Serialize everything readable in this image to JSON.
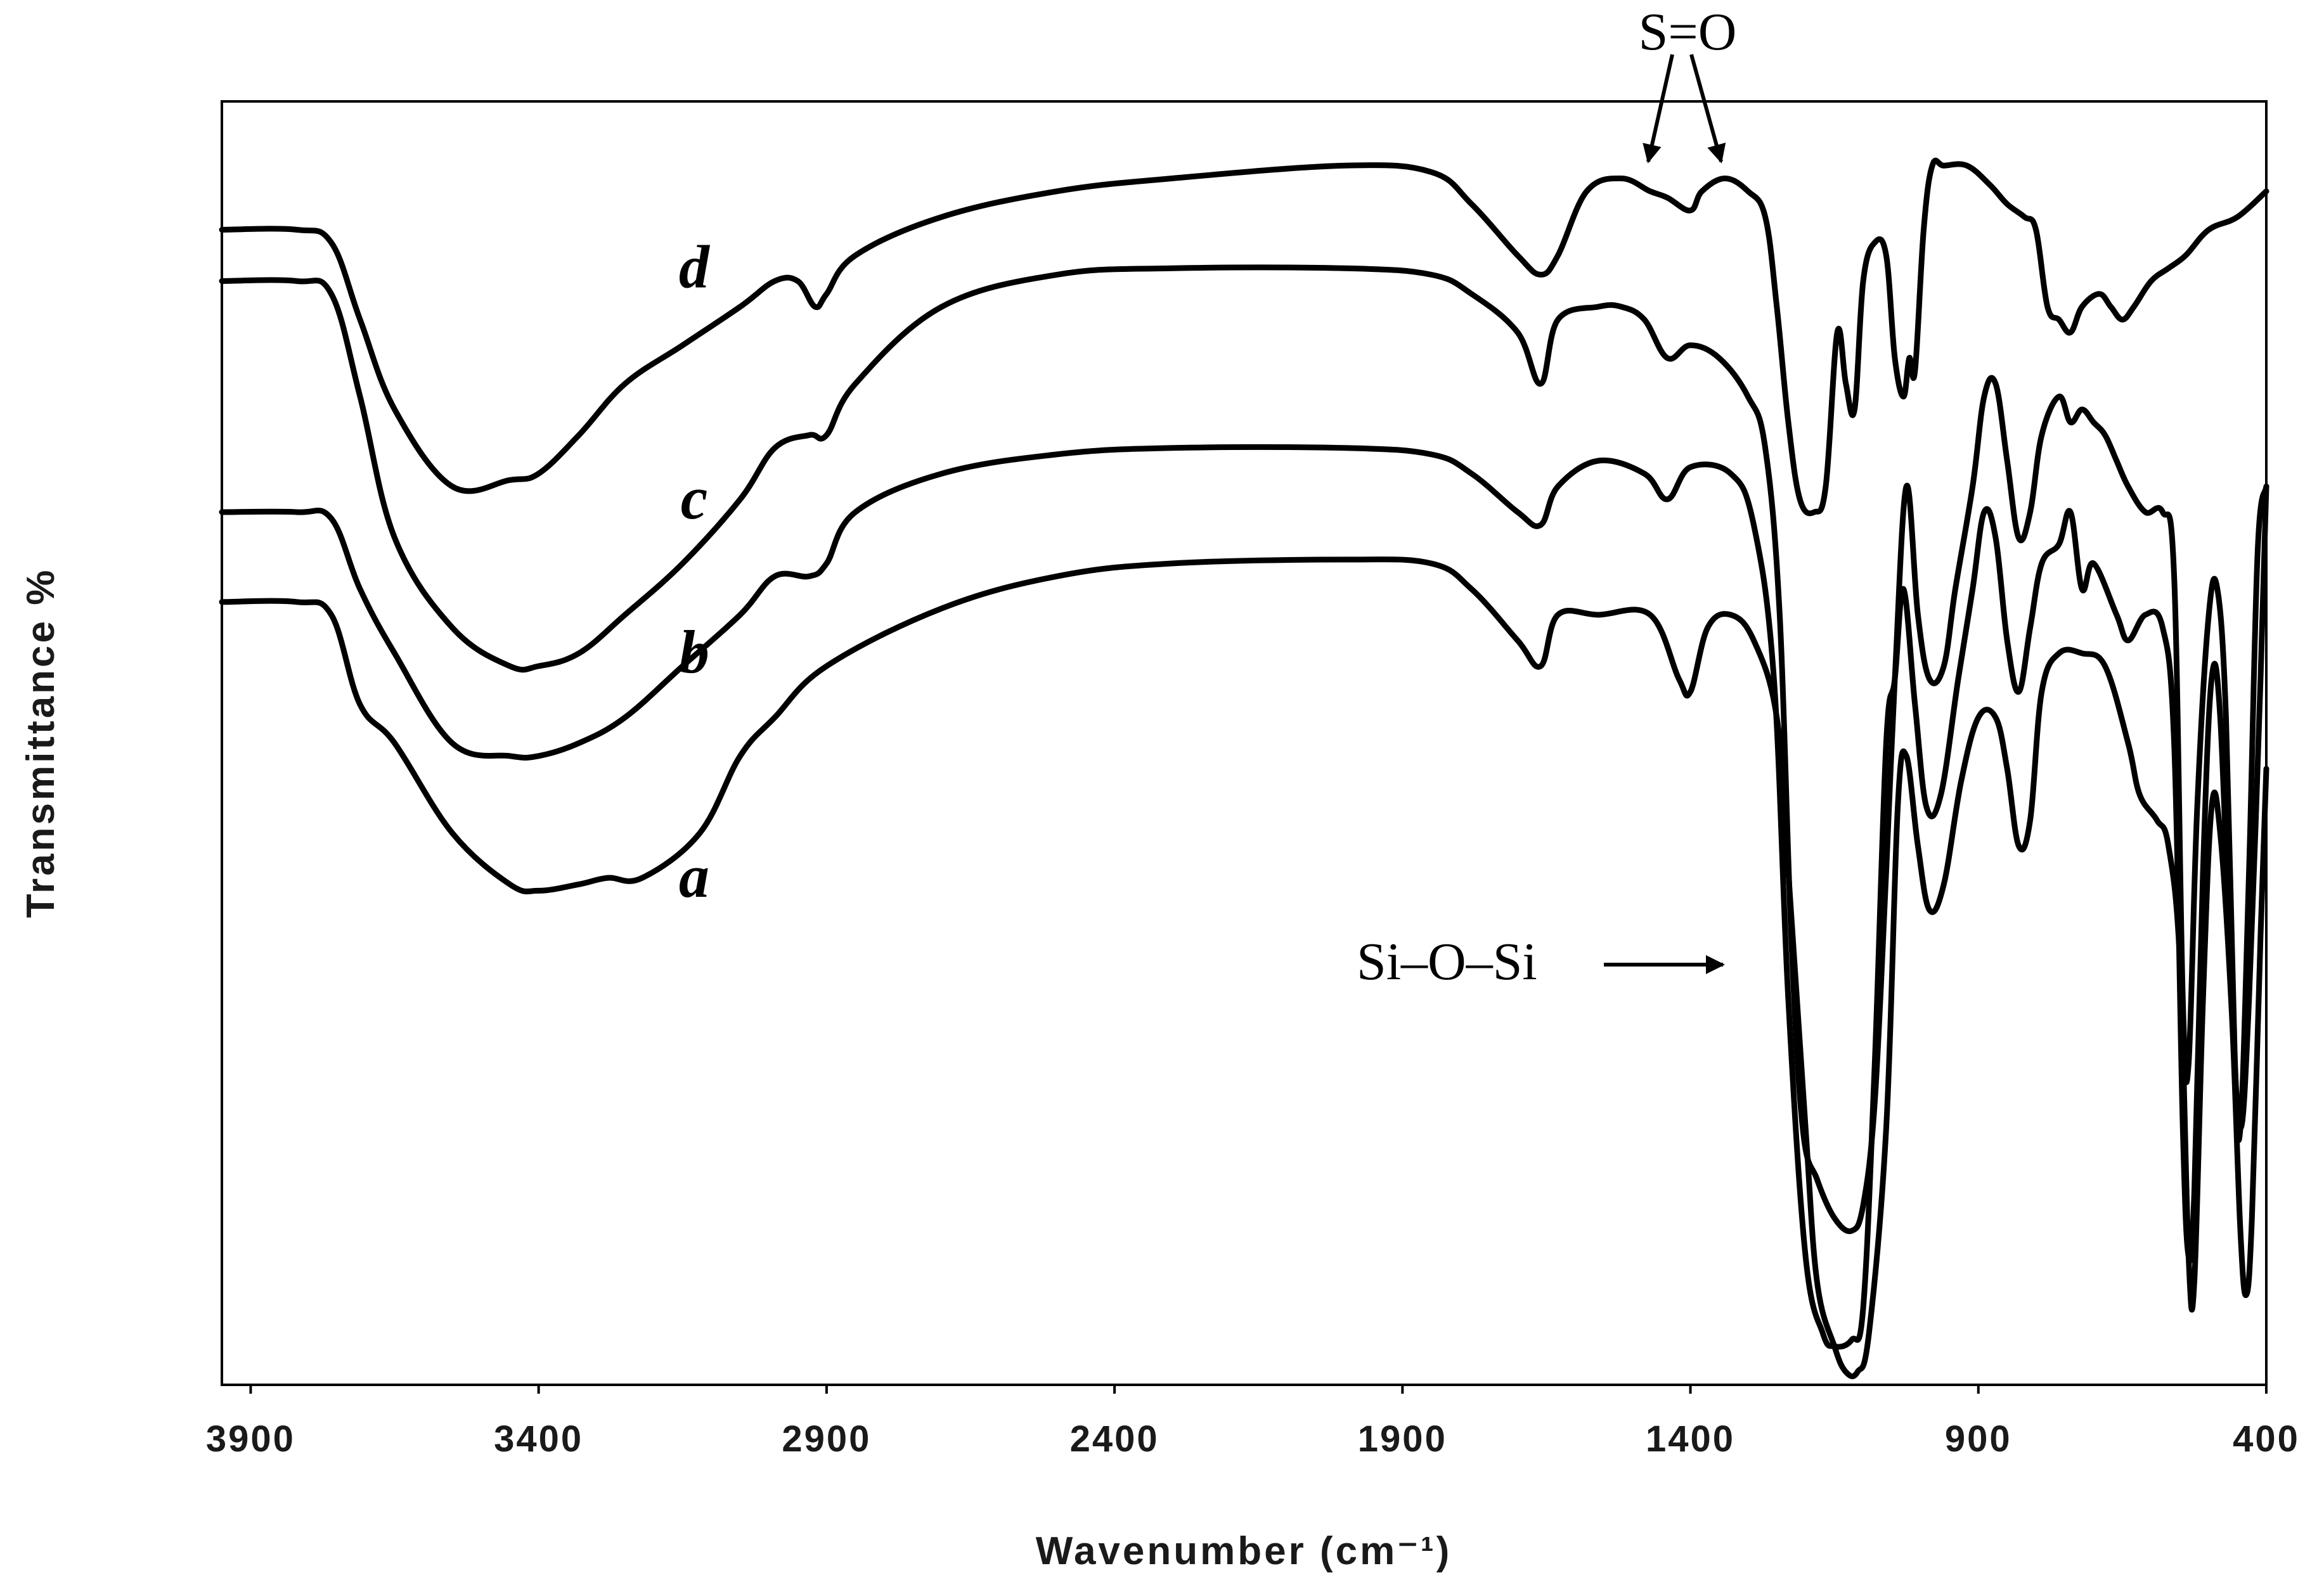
{
  "chart_data": {
    "type": "line",
    "xlabel": "Wavenumber (cm⁻¹)",
    "ylabel": "Transmittance %",
    "xlim": [
      3950,
      400
    ],
    "x_reversed": true,
    "x_ticks": [
      3900,
      3400,
      2900,
      2400,
      1900,
      1400,
      900,
      400
    ],
    "y_ticks_shown": false,
    "grid": false,
    "ylim": [
      0,
      100
    ],
    "series": [
      {
        "name": "a",
        "points": [
          [
            3950,
            61
          ],
          [
            3820,
            61
          ],
          [
            3760,
            60
          ],
          [
            3710,
            53
          ],
          [
            3650,
            50
          ],
          [
            3550,
            43
          ],
          [
            3450,
            39
          ],
          [
            3400,
            38.5
          ],
          [
            3330,
            39
          ],
          [
            3280,
            39.5
          ],
          [
            3220,
            39.5
          ],
          [
            3120,
            43
          ],
          [
            3050,
            49
          ],
          [
            2990,
            52
          ],
          [
            2900,
            56
          ],
          [
            2700,
            60.5
          ],
          [
            2500,
            63
          ],
          [
            2300,
            64
          ],
          [
            2000,
            64.3
          ],
          [
            1850,
            64
          ],
          [
            1780,
            62
          ],
          [
            1700,
            58
          ],
          [
            1660,
            56
          ],
          [
            1630,
            60
          ],
          [
            1560,
            60
          ],
          [
            1470,
            60
          ],
          [
            1420,
            55
          ],
          [
            1400,
            54
          ],
          [
            1370,
            59
          ],
          [
            1330,
            60
          ],
          [
            1290,
            58
          ],
          [
            1250,
            52
          ],
          [
            1230,
            40
          ],
          [
            1200,
            20
          ],
          [
            1180,
            8
          ],
          [
            1150,
            3
          ],
          [
            1130,
            1
          ],
          [
            1110,
            1
          ],
          [
            1090,
            4
          ],
          [
            1060,
            20
          ],
          [
            1040,
            45
          ],
          [
            1025,
            49
          ],
          [
            1005,
            42
          ],
          [
            985,
            37
          ],
          [
            960,
            39
          ],
          [
            930,
            47
          ],
          [
            900,
            52
          ],
          [
            870,
            52
          ],
          [
            850,
            48
          ],
          [
            830,
            42
          ],
          [
            810,
            44
          ],
          [
            790,
            54
          ],
          [
            760,
            57
          ],
          [
            720,
            57
          ],
          [
            680,
            56
          ],
          [
            640,
            50
          ],
          [
            620,
            46
          ],
          [
            590,
            44
          ],
          [
            570,
            42
          ],
          [
            550,
            33
          ],
          [
            535,
            10
          ],
          [
            525,
            8
          ],
          [
            510,
            30
          ],
          [
            495,
            45
          ],
          [
            480,
            43
          ],
          [
            460,
            29
          ],
          [
            445,
            12
          ],
          [
            435,
            7
          ],
          [
            425,
            13
          ],
          [
            410,
            35
          ],
          [
            400,
            48
          ]
        ]
      },
      {
        "name": "b",
        "points": [
          [
            3950,
            68
          ],
          [
            3820,
            68
          ],
          [
            3760,
            67.5
          ],
          [
            3710,
            62
          ],
          [
            3650,
            57
          ],
          [
            3550,
            50
          ],
          [
            3450,
            49
          ],
          [
            3400,
            49
          ],
          [
            3330,
            50
          ],
          [
            3250,
            52
          ],
          [
            3150,
            56
          ],
          [
            3050,
            60
          ],
          [
            2990,
            63
          ],
          [
            2930,
            63
          ],
          [
            2900,
            64
          ],
          [
            2850,
            68
          ],
          [
            2700,
            71
          ],
          [
            2500,
            72.5
          ],
          [
            2300,
            73
          ],
          [
            2000,
            73
          ],
          [
            1850,
            72.5
          ],
          [
            1780,
            71
          ],
          [
            1700,
            68
          ],
          [
            1660,
            67
          ],
          [
            1630,
            70
          ],
          [
            1560,
            72
          ],
          [
            1480,
            71
          ],
          [
            1440,
            69
          ],
          [
            1400,
            71.5
          ],
          [
            1330,
            71
          ],
          [
            1290,
            67
          ],
          [
            1255,
            55
          ],
          [
            1230,
            30
          ],
          [
            1200,
            10
          ],
          [
            1170,
            4
          ],
          [
            1150,
            3
          ],
          [
            1120,
            3.5
          ],
          [
            1100,
            6
          ],
          [
            1080,
            25
          ],
          [
            1060,
            50
          ],
          [
            1045,
            55
          ],
          [
            1030,
            62
          ],
          [
            1010,
            53
          ],
          [
            990,
            45
          ],
          [
            965,
            46
          ],
          [
            935,
            55
          ],
          [
            910,
            62
          ],
          [
            890,
            68
          ],
          [
            870,
            66
          ],
          [
            850,
            58
          ],
          [
            830,
            54
          ],
          [
            810,
            59
          ],
          [
            790,
            64
          ],
          [
            760,
            65.5
          ],
          [
            740,
            68
          ],
          [
            720,
            62
          ],
          [
            700,
            64
          ],
          [
            660,
            60
          ],
          [
            640,
            58
          ],
          [
            610,
            60
          ],
          [
            580,
            59
          ],
          [
            560,
            50
          ],
          [
            545,
            20
          ],
          [
            535,
            10
          ],
          [
            525,
            15
          ],
          [
            510,
            40
          ],
          [
            495,
            55
          ],
          [
            480,
            52
          ],
          [
            460,
            30
          ],
          [
            445,
            20
          ],
          [
            430,
            30
          ],
          [
            410,
            55
          ],
          [
            400,
            70
          ]
        ]
      },
      {
        "name": "c",
        "points": [
          [
            3950,
            86
          ],
          [
            3820,
            86
          ],
          [
            3760,
            85
          ],
          [
            3710,
            77
          ],
          [
            3650,
            66
          ],
          [
            3550,
            59
          ],
          [
            3450,
            56
          ],
          [
            3400,
            56
          ],
          [
            3330,
            57
          ],
          [
            3250,
            60
          ],
          [
            3150,
            64
          ],
          [
            3050,
            69
          ],
          [
            2990,
            73
          ],
          [
            2930,
            74
          ],
          [
            2900,
            74
          ],
          [
            2850,
            78
          ],
          [
            2700,
            84
          ],
          [
            2500,
            86.5
          ],
          [
            2300,
            87
          ],
          [
            2000,
            87
          ],
          [
            1850,
            86.5
          ],
          [
            1780,
            85
          ],
          [
            1700,
            82
          ],
          [
            1660,
            78
          ],
          [
            1630,
            83
          ],
          [
            1560,
            84
          ],
          [
            1520,
            84
          ],
          [
            1480,
            83
          ],
          [
            1440,
            80
          ],
          [
            1400,
            81
          ],
          [
            1350,
            80
          ],
          [
            1300,
            77
          ],
          [
            1270,
            73
          ],
          [
            1245,
            60
          ],
          [
            1225,
            35
          ],
          [
            1205,
            20
          ],
          [
            1180,
            16
          ],
          [
            1150,
            13
          ],
          [
            1120,
            12
          ],
          [
            1100,
            14
          ],
          [
            1080,
            22
          ],
          [
            1060,
            40
          ],
          [
            1045,
            55
          ],
          [
            1025,
            70
          ],
          [
            1005,
            60
          ],
          [
            985,
            55
          ],
          [
            960,
            56
          ],
          [
            940,
            62
          ],
          [
            910,
            70
          ],
          [
            890,
            77
          ],
          [
            870,
            78
          ],
          [
            850,
            72
          ],
          [
            830,
            66
          ],
          [
            810,
            68
          ],
          [
            790,
            74
          ],
          [
            760,
            77
          ],
          [
            740,
            75
          ],
          [
            720,
            76
          ],
          [
            700,
            75
          ],
          [
            680,
            74
          ],
          [
            660,
            72
          ],
          [
            640,
            70
          ],
          [
            610,
            68
          ],
          [
            580,
            68
          ],
          [
            560,
            63
          ],
          [
            545,
            30
          ],
          [
            535,
            25
          ],
          [
            520,
            45
          ],
          [
            500,
            60
          ],
          [
            485,
            62
          ],
          [
            470,
            52
          ],
          [
            455,
            26
          ],
          [
            445,
            20
          ],
          [
            430,
            40
          ],
          [
            415,
            65
          ],
          [
            400,
            70
          ]
        ]
      },
      {
        "name": "d",
        "points": [
          [
            3950,
            90
          ],
          [
            3820,
            90
          ],
          [
            3760,
            89
          ],
          [
            3710,
            83
          ],
          [
            3650,
            76
          ],
          [
            3550,
            70
          ],
          [
            3450,
            70.5
          ],
          [
            3400,
            71
          ],
          [
            3330,
            74
          ],
          [
            3250,
            78
          ],
          [
            3150,
            81
          ],
          [
            3050,
            84
          ],
          [
            2990,
            86
          ],
          [
            2950,
            86
          ],
          [
            2920,
            84
          ],
          [
            2900,
            85
          ],
          [
            2850,
            88
          ],
          [
            2700,
            91
          ],
          [
            2500,
            93
          ],
          [
            2300,
            94
          ],
          [
            2000,
            95
          ],
          [
            1850,
            94.5
          ],
          [
            1780,
            92
          ],
          [
            1700,
            88
          ],
          [
            1660,
            86.5
          ],
          [
            1630,
            88
          ],
          [
            1580,
            93
          ],
          [
            1520,
            94
          ],
          [
            1470,
            93
          ],
          [
            1440,
            92.5
          ],
          [
            1400,
            91.5
          ],
          [
            1380,
            93
          ],
          [
            1340,
            94
          ],
          [
            1300,
            93
          ],
          [
            1270,
            91
          ],
          [
            1250,
            84
          ],
          [
            1230,
            75
          ],
          [
            1210,
            69
          ],
          [
            1185,
            68
          ],
          [
            1165,
            70
          ],
          [
            1145,
            82
          ],
          [
            1130,
            78
          ],
          [
            1115,
            76
          ],
          [
            1100,
            86
          ],
          [
            1080,
            89
          ],
          [
            1060,
            88
          ],
          [
            1045,
            80
          ],
          [
            1030,
            77
          ],
          [
            1020,
            80
          ],
          [
            1010,
            79
          ],
          [
            995,
            90
          ],
          [
            980,
            95
          ],
          [
            960,
            95
          ],
          [
            920,
            95
          ],
          [
            880,
            93.5
          ],
          [
            850,
            92
          ],
          [
            820,
            91
          ],
          [
            800,
            90
          ],
          [
            780,
            84
          ],
          [
            760,
            83
          ],
          [
            740,
            82
          ],
          [
            720,
            84
          ],
          [
            690,
            85
          ],
          [
            670,
            84
          ],
          [
            650,
            83
          ],
          [
            630,
            84
          ],
          [
            600,
            86
          ],
          [
            570,
            87
          ],
          [
            540,
            88
          ],
          [
            500,
            90
          ],
          [
            450,
            91
          ],
          [
            400,
            93
          ]
        ]
      }
    ],
    "series_label_positions": [
      {
        "name": "a",
        "x": 3130,
        "y": 39.5
      },
      {
        "name": "b",
        "x": 3130,
        "y": 57
      },
      {
        "name": "c",
        "x": 3130,
        "y": 69
      },
      {
        "name": "d",
        "x": 3130,
        "y": 87
      }
    ],
    "annotations": [
      {
        "text": "S=O",
        "targets": [
          1480,
          1390
        ]
      },
      {
        "text": "Si–O–Si"
      }
    ]
  }
}
